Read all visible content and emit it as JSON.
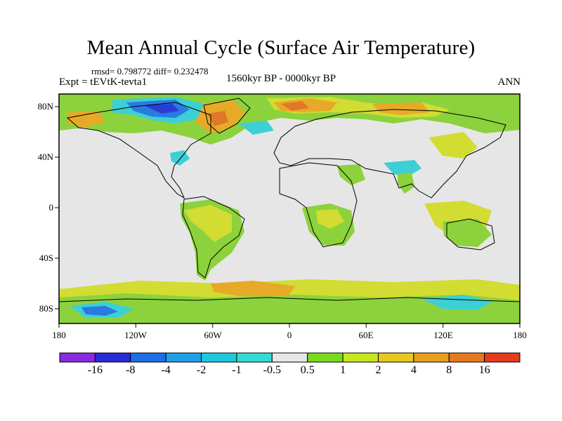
{
  "title": "Mean Annual Cycle (Surface Air Temperature)",
  "stats": "rmsd= 0.798772 diff= 0.232478",
  "experiment": "Expt = tEVtK-tevta1",
  "period": "1560kyr BP - 0000kyr BP",
  "season": "ANN",
  "y_axis_labels": [
    "80N",
    "40N",
    "0",
    "40S",
    "80S"
  ],
  "x_axis_labels": [
    "180",
    "120W",
    "60W",
    "0",
    "60E",
    "120E",
    "180"
  ],
  "colorbar": {
    "labels": [
      "-16",
      "-8",
      "-4",
      "-2",
      "-1",
      "-0.5",
      "0.5",
      "1",
      "2",
      "4",
      "8",
      "16"
    ],
    "colors": [
      "#8a2be2",
      "#2a2ad8",
      "#1e6ee6",
      "#1ea0e6",
      "#1ec8dc",
      "#32dcd2",
      "#e6e6e6",
      "#78dc1e",
      "#c8e61e",
      "#e6c81e",
      "#e6a01e",
      "#e6781e",
      "#e63c1e"
    ]
  },
  "map_colors": {
    "background": "#e6e6e6",
    "green": "#8cd23c",
    "yellow": "#d2dc32",
    "orange": "#e6aa28",
    "red": "#e07828",
    "cyan": "#3ccfd6",
    "blue": "#2a7ae0",
    "dark_blue": "#2a3cd8",
    "coast": "#000000"
  }
}
